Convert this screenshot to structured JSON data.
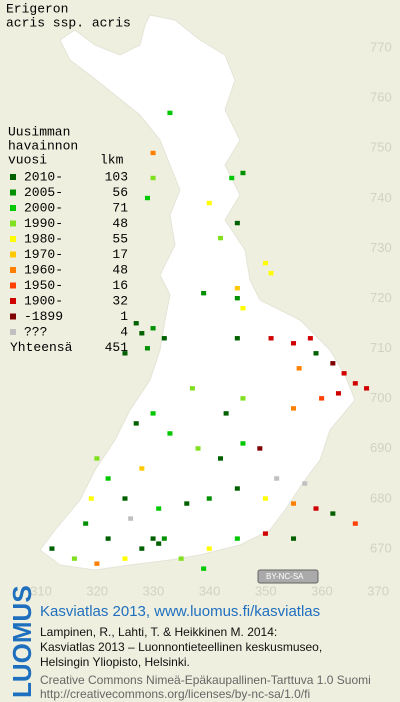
{
  "map": {
    "title": [
      "Erigeron",
      "acris ssp. acris"
    ],
    "legend": {
      "heading": [
        "Uusimman",
        "havainnon",
        "vuosi"
      ],
      "count_heading": "lkm",
      "items": [
        {
          "label": "2010-",
          "count": 103,
          "color": "#006000"
        },
        {
          "label": "2005-",
          "count": 56,
          "color": "#009000"
        },
        {
          "label": "2000-",
          "count": 71,
          "color": "#00c800"
        },
        {
          "label": "1990-",
          "count": 48,
          "color": "#80e020"
        },
        {
          "label": "1980-",
          "count": 55,
          "color": "#ffff00"
        },
        {
          "label": "1970-",
          "count": 17,
          "color": "#ffc800"
        },
        {
          "label": "1960-",
          "count": 48,
          "color": "#ff8000"
        },
        {
          "label": "1950-",
          "count": 16,
          "color": "#ff4000"
        },
        {
          "label": "1900-",
          "count": 32,
          "color": "#d00000"
        },
        {
          "label": "-1899",
          "count": 1,
          "color": "#800000"
        },
        {
          "label": "???",
          "count": 4,
          "color": "#c0c0c0"
        }
      ],
      "total_label": "Yhteensä",
      "total": 451
    },
    "xlim": [
      302.7,
      373.9
    ],
    "ylim": [
      659.8,
      779.6
    ],
    "xticks": [
      310,
      320,
      330,
      340,
      350,
      360,
      370
    ],
    "yticks": [
      670,
      680,
      690,
      700,
      710,
      720,
      730,
      740,
      750,
      760,
      770
    ],
    "points": [
      [
        333,
        757,
        2
      ],
      [
        330,
        749,
        6
      ],
      [
        330,
        744,
        3
      ],
      [
        329,
        740,
        2
      ],
      [
        346,
        745,
        1
      ],
      [
        344,
        744,
        2
      ],
      [
        340,
        739,
        4
      ],
      [
        345,
        735,
        0
      ],
      [
        342,
        732,
        3
      ],
      [
        350,
        727,
        4
      ],
      [
        351,
        725,
        4
      ],
      [
        345,
        722,
        5
      ],
      [
        339,
        721,
        1
      ],
      [
        345,
        720,
        1
      ],
      [
        346,
        718,
        4
      ],
      [
        327,
        715,
        0
      ],
      [
        328,
        713,
        0
      ],
      [
        330,
        714,
        1
      ],
      [
        332,
        712,
        0
      ],
      [
        325,
        709,
        0
      ],
      [
        329,
        710,
        1
      ],
      [
        345,
        712,
        0
      ],
      [
        351,
        712,
        8
      ],
      [
        355,
        711,
        8
      ],
      [
        358,
        712,
        8
      ],
      [
        359,
        709,
        0
      ],
      [
        356,
        706,
        6
      ],
      [
        362,
        707,
        9
      ],
      [
        364,
        705,
        8
      ],
      [
        366,
        703,
        8
      ],
      [
        363,
        701,
        8
      ],
      [
        368,
        702,
        8
      ],
      [
        360,
        700,
        7
      ],
      [
        355,
        698,
        6
      ],
      [
        343,
        697,
        0
      ],
      [
        346,
        700,
        3
      ],
      [
        337,
        702,
        3
      ],
      [
        330,
        697,
        2
      ],
      [
        327,
        695,
        0
      ],
      [
        333,
        693,
        2
      ],
      [
        338,
        690,
        3
      ],
      [
        342,
        688,
        0
      ],
      [
        346,
        691,
        2
      ],
      [
        328,
        686,
        5
      ],
      [
        320,
        688,
        3
      ],
      [
        322,
        684,
        2
      ],
      [
        319,
        680,
        4
      ],
      [
        325,
        680,
        0
      ],
      [
        331,
        678,
        2
      ],
      [
        336,
        679,
        0
      ],
      [
        340,
        680,
        1
      ],
      [
        345,
        682,
        0
      ],
      [
        350,
        680,
        4
      ],
      [
        355,
        679,
        6
      ],
      [
        359,
        678,
        8
      ],
      [
        362,
        677,
        0
      ],
      [
        366,
        675,
        7
      ],
      [
        330,
        672,
        0
      ],
      [
        331,
        671,
        0
      ],
      [
        332,
        672,
        1
      ],
      [
        328,
        670,
        0
      ],
      [
        325,
        668,
        4
      ],
      [
        320,
        667,
        6
      ],
      [
        316,
        668,
        3
      ],
      [
        312,
        670,
        0
      ],
      [
        340,
        670,
        4
      ],
      [
        345,
        672,
        2
      ],
      [
        350,
        673,
        8
      ],
      [
        355,
        672,
        0
      ],
      [
        335,
        668,
        3
      ],
      [
        339,
        666,
        2
      ],
      [
        322,
        672,
        0
      ],
      [
        318,
        675,
        1
      ],
      [
        326,
        676,
        10
      ],
      [
        352,
        684,
        10
      ],
      [
        357,
        683,
        10
      ],
      [
        349,
        690,
        9
      ]
    ]
  },
  "badge": "BY-NC-SA",
  "footer": {
    "logo": "LUOMUS",
    "link": "Kasviatlas 2013, www.luomus.fi/kasviatlas",
    "citation": [
      "Lampinen, R., Lahti, T. & Heikkinen M. 2014:",
      "Kasviatlas 2013 – Luonnontieteellinen keskusmuseo,",
      "Helsingin Yliopisto, Helsinki."
    ],
    "license": [
      "Creative Commons Nimeä-Epäkaupallinen-Tarttuva 1.0 Suomi",
      "http://creativecommons.org/licenses/by-nc-sa/1.0/fi"
    ]
  }
}
